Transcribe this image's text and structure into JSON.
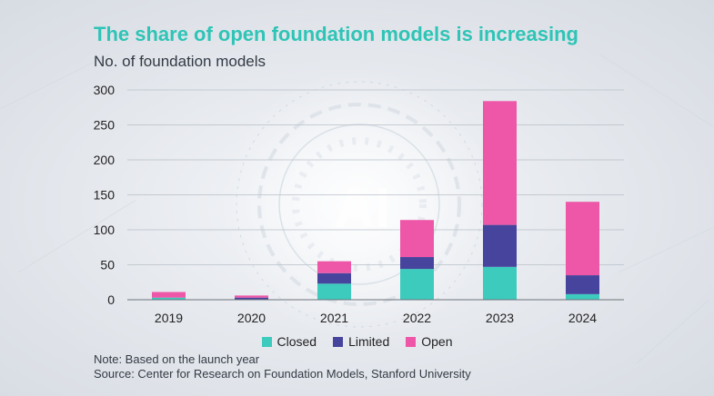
{
  "header": {
    "title": "The share of open foundation models is increasing",
    "subtitle": "No. of foundation models"
  },
  "background": {
    "watermark": "AI"
  },
  "footer": {
    "note": "Note: Based on the launch year",
    "source": "Source: Center for Research on Foundation Models, Stanford University"
  },
  "colors": {
    "title": "#2ec4b6",
    "Closed": "#3ccbbd",
    "Limited": "#46449c",
    "Open": "#ee56a8"
  },
  "chart_data": {
    "type": "bar",
    "stacked": true,
    "title": "The share of open foundation models is increasing",
    "ylabel": "No. of foundation models",
    "xlabel": "",
    "categories": [
      "2019",
      "2020",
      "2021",
      "2022",
      "2023",
      "2024"
    ],
    "series": [
      {
        "name": "Closed",
        "color": "#3ccbbd",
        "values": [
          3,
          0,
          23,
          44,
          47,
          8
        ]
      },
      {
        "name": "Limited",
        "color": "#46449c",
        "values": [
          0,
          3,
          15,
          17,
          60,
          27
        ]
      },
      {
        "name": "Open",
        "color": "#ee56a8",
        "values": [
          8,
          3,
          17,
          53,
          177,
          105
        ]
      }
    ],
    "ylim": [
      0,
      300
    ],
    "yticks": [
      0,
      50,
      100,
      150,
      200,
      250,
      300
    ],
    "grid": true,
    "legend_position": "bottom"
  }
}
